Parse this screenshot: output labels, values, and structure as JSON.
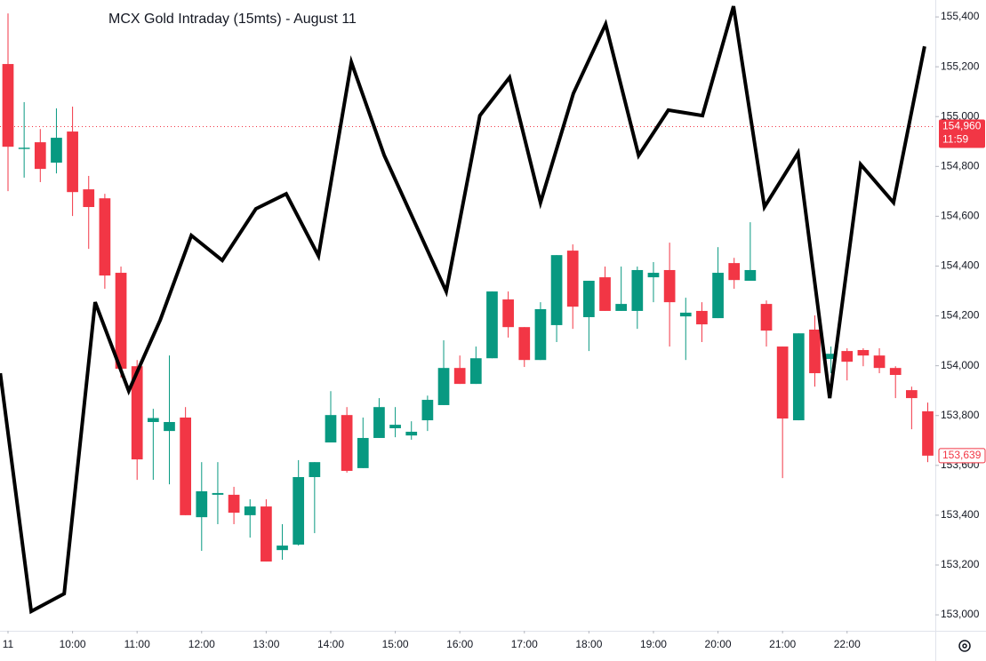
{
  "chart_data": {
    "type": "candlestick",
    "title": "MCX Gold Intraday (15mts) - August 11",
    "x": [
      9,
      9.25,
      9.5,
      9.75,
      10,
      10.25,
      10.5,
      10.75,
      11,
      11.25,
      11.5,
      11.75,
      12,
      12.25,
      12.5,
      12.75,
      13,
      13.25,
      13.5,
      13.75,
      14,
      14.25,
      14.5,
      14.75,
      15,
      15.25,
      15.5,
      15.75,
      16,
      16.25,
      16.5,
      16.75,
      17,
      17.25,
      17.5,
      17.75,
      18,
      18.25,
      18.5,
      18.75,
      19,
      19.25,
      19.5,
      19.75,
      20,
      20.25,
      20.5,
      20.75,
      21,
      21.25,
      21.5,
      21.75,
      22,
      22.25,
      22.5,
      22.75,
      23,
      23.25
    ],
    "open": [
      155211,
      154870,
      154897,
      154815,
      154940,
      154708,
      154672,
      154373,
      153998,
      153774,
      153738,
      153792,
      153392,
      153482,
      153482,
      153400,
      153435,
      153260,
      153282,
      153553,
      153692,
      153802,
      153589,
      153710,
      153749,
      153720,
      153781,
      153842,
      153991,
      153927,
      154030,
      154266,
      154155,
      154023,
      154163,
      154462,
      154195,
      154355,
      154220,
      154220,
      154355,
      154384,
      154198,
      154220,
      154191,
      154412,
      154341,
      154248,
      154077,
      153781,
      154145,
      154027,
      154059,
      154063,
      154041,
      153991,
      153902,
      153817
    ],
    "high": [
      155414,
      155058,
      154950,
      155033,
      155040,
      154762,
      154690,
      154398,
      154023,
      153827,
      154041,
      153834,
      153613,
      153613,
      153514,
      153464,
      153464,
      153364,
      153621,
      153613,
      153898,
      153834,
      153792,
      153870,
      153834,
      153777,
      153880,
      154102,
      154041,
      154077,
      154298,
      154298,
      154155,
      154255,
      154444,
      154487,
      154341,
      154398,
      154398,
      154398,
      154416,
      154494,
      154273,
      154255,
      154476,
      154433,
      154576,
      154262,
      154077,
      154130,
      154202,
      154077,
      154070,
      154070,
      154070,
      153998,
      153916,
      153852
    ],
    "low": [
      154701,
      154755,
      154737,
      154772,
      154601,
      154469,
      154309,
      153952,
      153542,
      153542,
      153524,
      153400,
      153257,
      153364,
      153364,
      153310,
      153214,
      153221,
      153278,
      153328,
      153692,
      153571,
      153589,
      153710,
      153713,
      153703,
      153738,
      153842,
      153927,
      153927,
      154030,
      154113,
      153995,
      154023,
      154095,
      154148,
      154059,
      154220,
      154220,
      154148,
      154255,
      154077,
      154023,
      154095,
      154191,
      154309,
      154341,
      154077,
      153549,
      153781,
      153916,
      153970,
      153941,
      153998,
      153970,
      153870,
      153745,
      153613
    ],
    "close": [
      154879,
      154875,
      154790,
      154915,
      154697,
      154637,
      154362,
      153988,
      153624,
      153790,
      153774,
      153400,
      153496,
      153489,
      153410,
      153435,
      153214,
      153278,
      153553,
      153613,
      153802,
      153578,
      153710,
      153834,
      153763,
      153735,
      153863,
      153991,
      153927,
      154030,
      154298,
      154155,
      154023,
      154227,
      154444,
      154237,
      154341,
      154220,
      154248,
      154384,
      154373,
      154255,
      154213,
      154166,
      154373,
      154344,
      154384,
      154141,
      153788,
      154130,
      153970,
      154048,
      154016,
      154041,
      153991,
      153963,
      153870,
      153639
    ],
    "up_color": "#089981",
    "down_color": "#f23645",
    "overlay": {
      "color": "#000000",
      "x": [
        8.88,
        9.36,
        9.87,
        10.35,
        10.87,
        11.36,
        11.84,
        12.32,
        12.84,
        13.31,
        13.81,
        14.32,
        14.83,
        15.79,
        16.31,
        16.77,
        17.25,
        17.76,
        18.26,
        18.77,
        19.23,
        19.76,
        20.24,
        20.72,
        21.24,
        21.73,
        22.21,
        22.72,
        23.2
      ],
      "values": [
        153970,
        153014,
        153085,
        154255,
        153899,
        154184,
        154523,
        154423,
        154630,
        154690,
        154441,
        155218,
        154844,
        154298,
        155004,
        155157,
        154655,
        155093,
        155371,
        154844,
        155026,
        155004,
        155443,
        154637,
        154854,
        153870,
        154808,
        154655,
        155282
      ]
    },
    "last_price": {
      "value": 154960,
      "label": "154,960",
      "countdown": "11:59"
    },
    "current_price": {
      "value": 153639,
      "label": "153,639"
    },
    "xlim": [
      8.876,
      23.367
    ],
    "xticks": [
      {
        "value": 9,
        "label": "11"
      },
      {
        "value": 10,
        "label": "10:00"
      },
      {
        "value": 11,
        "label": "11:00"
      },
      {
        "value": 12,
        "label": "12:00"
      },
      {
        "value": 13,
        "label": "13:00"
      },
      {
        "value": 14,
        "label": "14:00"
      },
      {
        "value": 15,
        "label": "15:00"
      },
      {
        "value": 16,
        "label": "16:00"
      },
      {
        "value": 17,
        "label": "17:00"
      },
      {
        "value": 18,
        "label": "18:00"
      },
      {
        "value": 19,
        "label": "19:00"
      },
      {
        "value": 20,
        "label": "20:00"
      },
      {
        "value": 21,
        "label": "21:00"
      },
      {
        "value": 22,
        "label": "22:00"
      }
    ],
    "ylim": [
      152936,
      155468
    ],
    "yticks": [
      {
        "value": 153000,
        "label": "153,000"
      },
      {
        "value": 153200,
        "label": "153,200"
      },
      {
        "value": 153400,
        "label": "153,400"
      },
      {
        "value": 153600,
        "label": "153,600"
      },
      {
        "value": 153800,
        "label": "153,800"
      },
      {
        "value": 154000,
        "label": "154,000"
      },
      {
        "value": 154200,
        "label": "154,200"
      },
      {
        "value": 154400,
        "label": "154,400"
      },
      {
        "value": 154600,
        "label": "154,600"
      },
      {
        "value": 154800,
        "label": "154,800"
      },
      {
        "value": 155000,
        "label": "155,000"
      },
      {
        "value": 155200,
        "label": "155,200"
      },
      {
        "value": 155400,
        "label": "155,400"
      }
    ],
    "grid": false
  }
}
